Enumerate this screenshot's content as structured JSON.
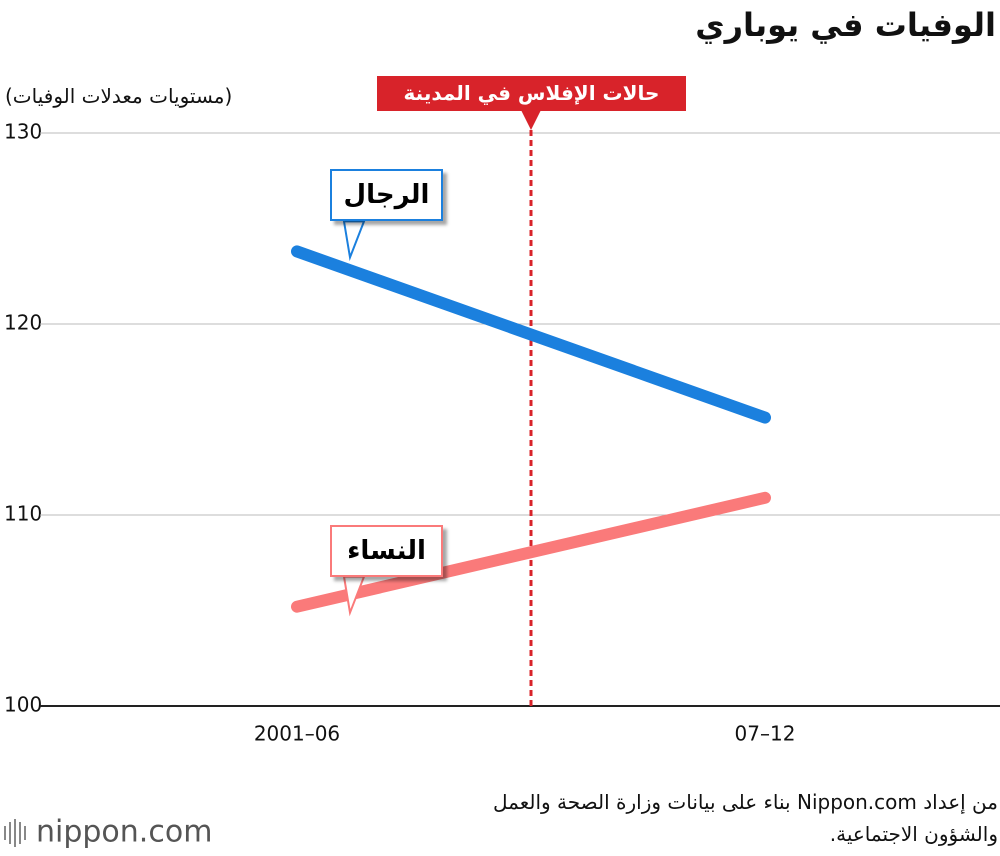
{
  "chart_data": {
    "type": "line",
    "title": "الوفيات في يوباري",
    "y_axis_label": "(مستويات معدلات الوفيات)",
    "annotation": "حالات الإفلاس في المدينة",
    "categories": [
      "2001–06",
      "07–12"
    ],
    "series": [
      {
        "name": "الرجال",
        "color": "#1b80de",
        "values": [
          123.8,
          115.1
        ]
      },
      {
        "name": "النساء",
        "color": "#fa7a7a",
        "values": [
          105.2,
          110.9
        ]
      }
    ],
    "ylim": [
      100,
      130
    ],
    "yticks": [
      100,
      110,
      120,
      130
    ],
    "grid": true,
    "source": [
      "من إعداد Nippon.com بناء على بيانات وزارة الصحة والعمل",
      "والشؤون الاجتماعية."
    ],
    "logo": "nippon.com"
  }
}
